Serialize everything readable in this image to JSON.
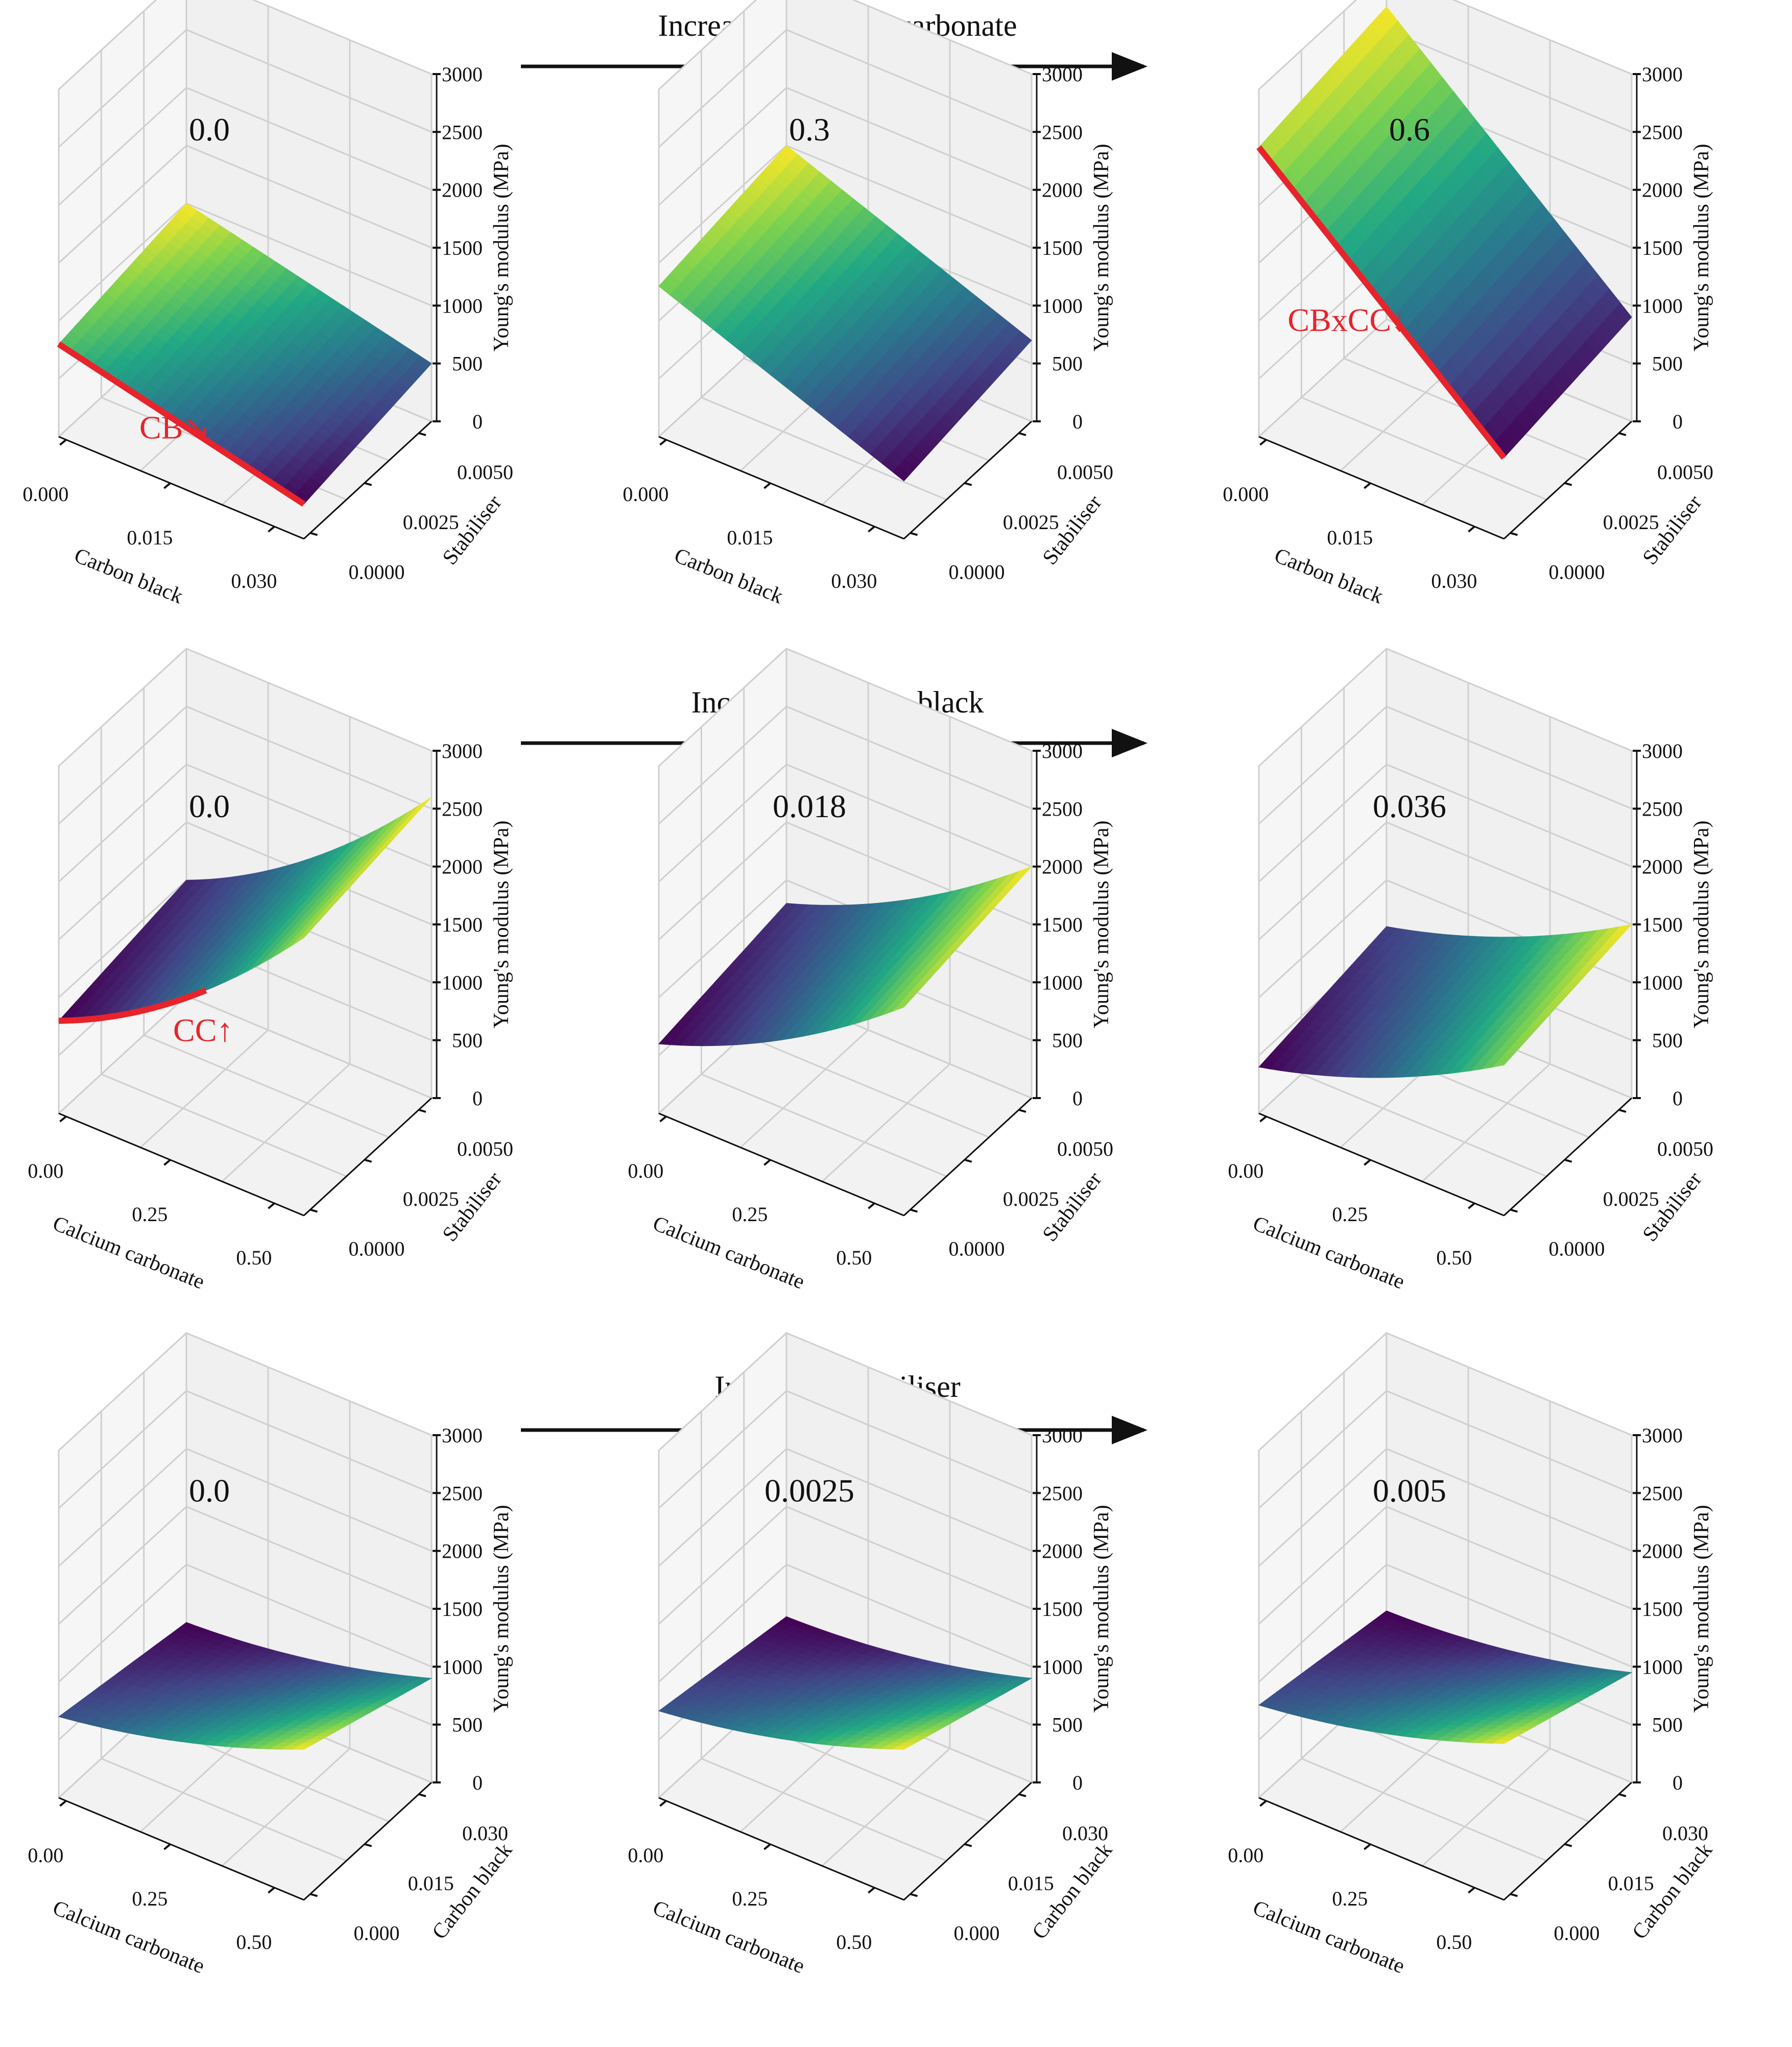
{
  "chart_data": {
    "type": "surface3d",
    "zlabel": "Young's modulus (MPa)",
    "zticks": [
      "0",
      "500",
      "1000",
      "1500",
      "2000",
      "2500",
      "3000"
    ],
    "colormap": [
      "#440154",
      "#414487",
      "#2a788e",
      "#22a884",
      "#7ad151",
      "#fde725"
    ],
    "highlight_color": "#e8232b",
    "rows": [
      {
        "title": "Increasing calcium carbonate",
        "xlabel": "Carbon black",
        "ylabel": "Stabiliser",
        "xticks": [
          "0.000",
          "0.015",
          "0.030"
        ],
        "yticks": [
          "0.0000",
          "0.0025",
          "0.0050"
        ],
        "panels": [
          {
            "label": "0.0",
            "z_corners": {
              "x0y0": 800,
              "x1y0": 300,
              "x0y1": 1000,
              "x1y1": 500
            },
            "curvature": 0,
            "annotation": "CB↘"
          },
          {
            "label": "0.3",
            "z_corners": {
              "x0y0": 1300,
              "x1y0": 500,
              "x0y1": 1500,
              "x1y1": 700
            },
            "curvature": 0,
            "annotation": ""
          },
          {
            "label": "0.6",
            "z_corners": {
              "x0y0": 2500,
              "x1y0": 700,
              "x0y1": 2700,
              "x1y1": 900
            },
            "curvature": 0,
            "annotation": "CBxCC↓"
          }
        ]
      },
      {
        "title": "Increasing carbon black",
        "xlabel": "Calcium carbonate",
        "ylabel": "Stabiliser",
        "xticks": [
          "0.00",
          "0.25",
          "0.50"
        ],
        "yticks": [
          "0.0000",
          "0.0025",
          "0.0050"
        ],
        "panels": [
          {
            "label": "0.0",
            "z_corners": {
              "x0y0": 800,
              "x1y0": 2400,
              "x0y1": 1000,
              "x1y1": 2600
            },
            "curvature": 700,
            "annotation": "CC↑"
          },
          {
            "label": "0.018",
            "z_corners": {
              "x0y0": 600,
              "x1y0": 1800,
              "x0y1": 800,
              "x1y1": 2000
            },
            "curvature": 500,
            "annotation": ""
          },
          {
            "label": "0.036",
            "z_corners": {
              "x0y0": 400,
              "x1y0": 1300,
              "x0y1": 600,
              "x1y1": 1500
            },
            "curvature": 400,
            "annotation": ""
          }
        ]
      },
      {
        "title": "Increasing stabiliser",
        "xlabel": "Calcium carbonate",
        "ylabel": "Carbon black",
        "xticks": [
          "0.00",
          "0.25",
          "0.50"
        ],
        "yticks": [
          "0.000",
          "0.015",
          "0.030"
        ],
        "panels": [
          {
            "label": "0.0",
            "z_corners": {
              "x0y0": 700,
              "x1y0": 1300,
              "x0y1": 500,
              "x1y1": 900
            },
            "curvature": 300,
            "annotation": ""
          },
          {
            "label": "0.0025",
            "z_corners": {
              "x0y0": 750,
              "x1y0": 1300,
              "x0y1": 550,
              "x1y1": 900
            },
            "curvature": 300,
            "annotation": ""
          },
          {
            "label": "0.005",
            "z_corners": {
              "x0y0": 800,
              "x1y0": 1350,
              "x0y1": 600,
              "x1y1": 950
            },
            "curvature": 300,
            "annotation": ""
          }
        ]
      }
    ]
  }
}
